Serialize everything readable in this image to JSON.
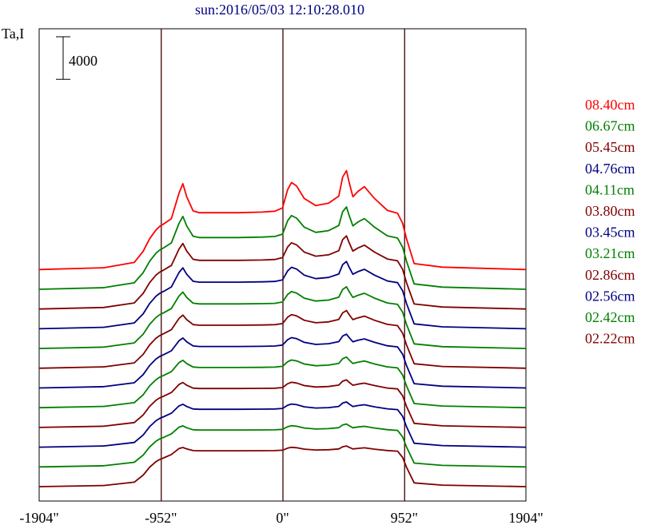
{
  "chart_data": {
    "type": "line",
    "title": "sun:2016/05/03 12:10:28.010",
    "ylabel": "Ta,I",
    "scale_bar_label": "4000",
    "x_ticks": [
      {
        "value": -1904,
        "label": "-1904\""
      },
      {
        "value": -952,
        "label": "-952\""
      },
      {
        "value": 0,
        "label": "0\""
      },
      {
        "value": 952,
        "label": "952\""
      },
      {
        "value": 1904,
        "label": "1904\""
      }
    ],
    "xlim": [
      -1904,
      1904
    ],
    "vertical_markers": [
      -952,
      0,
      952
    ],
    "scale_bar_value": 4000,
    "vertical_offset_per_series": 2600,
    "legend_position": "right",
    "series": [
      {
        "name": "08.40cm",
        "color": "#ff0000",
        "baseline": 1500,
        "peak_scale": 1.0
      },
      {
        "name": "06.67cm",
        "color": "#008000",
        "baseline": 1500,
        "peak_scale": 0.8
      },
      {
        "name": "05.45cm",
        "color": "#800000",
        "baseline": 1500,
        "peak_scale": 0.68
      },
      {
        "name": "04.76cm",
        "color": "#000080",
        "baseline": 1500,
        "peak_scale": 0.6
      },
      {
        "name": "04.11cm",
        "color": "#008000",
        "baseline": 1500,
        "peak_scale": 0.52
      },
      {
        "name": "03.80cm",
        "color": "#800000",
        "baseline": 1500,
        "peak_scale": 0.46
      },
      {
        "name": "03.45cm",
        "color": "#000080",
        "baseline": 1500,
        "peak_scale": 0.4
      },
      {
        "name": "03.21cm",
        "color": "#008000",
        "baseline": 1500,
        "peak_scale": 0.35
      },
      {
        "name": "02.86cm",
        "color": "#800000",
        "baseline": 1500,
        "peak_scale": 0.3
      },
      {
        "name": "02.56cm",
        "color": "#000080",
        "baseline": 1500,
        "peak_scale": 0.26
      },
      {
        "name": "02.42cm",
        "color": "#008000",
        "baseline": 1500,
        "peak_scale": 0.22
      },
      {
        "name": "02.22cm",
        "color": "#800000",
        "baseline": 1500,
        "peak_scale": 0.18
      }
    ],
    "profile_points": {
      "x": [
        -1904,
        -1400,
        -1160,
        -1090,
        -1040,
        -990,
        -960,
        -930,
        -870,
        -810,
        -780,
        -750,
        -700,
        -650,
        -560,
        -350,
        -160,
        -60,
        0,
        40,
        70,
        110,
        170,
        260,
        360,
        440,
        470,
        500,
        520,
        550,
        590,
        640,
        720,
        820,
        900,
        940,
        970,
        1030,
        1250,
        1904
      ],
      "y": [
        0,
        300,
        1200,
        3100,
        5200,
        6700,
        7300,
        7700,
        8600,
        12900,
        14500,
        12300,
        9900,
        9600,
        9600,
        9600,
        9700,
        9850,
        10400,
        13500,
        14700,
        14100,
        12000,
        10800,
        11200,
        12400,
        15600,
        16700,
        14800,
        12300,
        13200,
        14000,
        12000,
        10000,
        9500,
        7800,
        5200,
        1000,
        400,
        0
      ]
    }
  }
}
